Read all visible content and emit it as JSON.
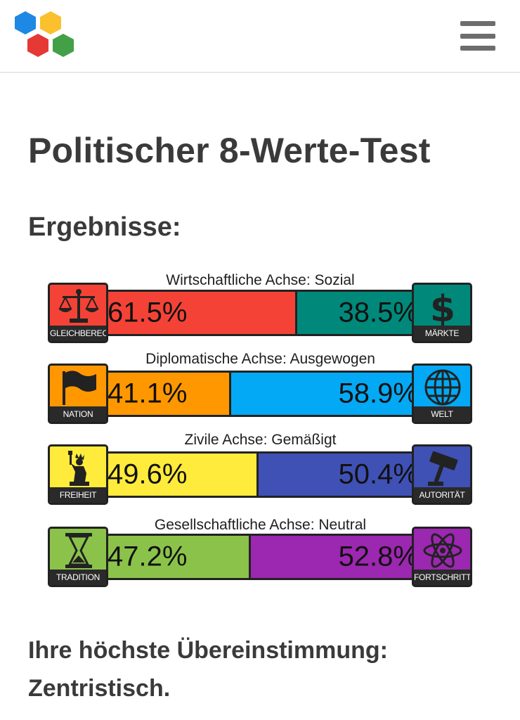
{
  "header": {
    "logo_icon": "hexagon-logo-icon",
    "menu_icon": "hamburger-menu-icon"
  },
  "page": {
    "title": "Politischer 8-Werte-Test",
    "subtitle": "Ergebnisse:"
  },
  "axes": [
    {
      "label": "Wirtschaftliche Achse: Sozial",
      "left": {
        "name": "GLEICHBERECHTIGUNG",
        "percent": "61.5%",
        "value": 61.5,
        "color": "#f44336",
        "icon": "scales-icon"
      },
      "right": {
        "name": "MÄRKTE",
        "percent": "38.5%",
        "value": 38.5,
        "color": "#00897b",
        "icon": "dollar-icon"
      }
    },
    {
      "label": "Diplomatische Achse: Ausgewogen",
      "left": {
        "name": "NATION",
        "percent": "41.1%",
        "value": 41.1,
        "color": "#ff9800",
        "icon": "flag-icon"
      },
      "right": {
        "name": "WELT",
        "percent": "58.9%",
        "value": 58.9,
        "color": "#03a9f4",
        "icon": "globe-icon"
      }
    },
    {
      "label": "Zivile Achse: Gemäßigt",
      "left": {
        "name": "FREIHEIT",
        "percent": "49.6%",
        "value": 49.6,
        "color": "#ffeb3b",
        "icon": "statue-of-liberty-icon"
      },
      "right": {
        "name": "AUTORITÄT",
        "percent": "50.4%",
        "value": 50.4,
        "color": "#3f51b5",
        "icon": "gavel-icon"
      }
    },
    {
      "label": "Gesellschaftliche Achse: Neutral",
      "left": {
        "name": "TRADITION",
        "percent": "47.2%",
        "value": 47.2,
        "color": "#8bc34a",
        "icon": "hourglass-icon"
      },
      "right": {
        "name": "FORTSCHRITT",
        "percent": "52.8%",
        "value": 52.8,
        "color": "#9c27b0",
        "icon": "atom-icon"
      }
    }
  ],
  "result": {
    "heading": "Ihre höchste Übereinstimmung:",
    "ideology": "Zentristisch."
  }
}
